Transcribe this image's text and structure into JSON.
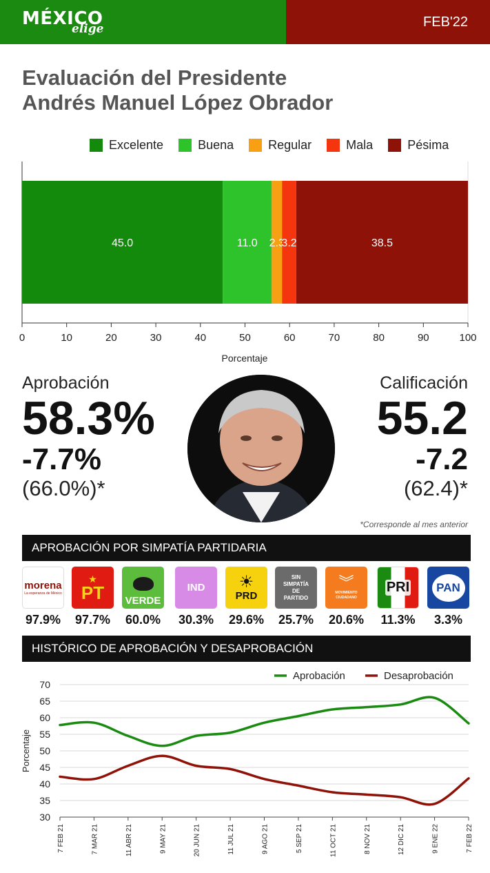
{
  "header": {
    "logo_main": "MÉXICO",
    "logo_sub": "elige",
    "date": "FEB'22",
    "colors": {
      "left": "#1a8a10",
      "right": "#8e1208"
    }
  },
  "title_line1": "Evaluación del Presidente",
  "title_line2": "Andrés Manuel López Obrador",
  "chart_data": [
    {
      "type": "bar",
      "orientation": "horizontal-stacked",
      "series": [
        {
          "name": "Excelente",
          "value": 45.0,
          "label": "45.0",
          "color": "#138a0c"
        },
        {
          "name": "Buena",
          "value": 11.0,
          "label": "11.0",
          "color": "#2ec32a"
        },
        {
          "name": "Regular",
          "value": 2.3,
          "label": "2.3",
          "color": "#f7a013"
        },
        {
          "name": "Mala",
          "value": 3.2,
          "label": "3.2",
          "color": "#f5350d"
        },
        {
          "name": "Pésima",
          "value": 38.5,
          "label": "38.5",
          "color": "#8e1208"
        }
      ],
      "xticks": [
        "0",
        "10",
        "20",
        "30",
        "40",
        "50",
        "60",
        "70",
        "80",
        "90",
        "100"
      ],
      "xlim": [
        0,
        100
      ],
      "xlabel": "Porcentaje",
      "legend": "top",
      "grid": false
    },
    {
      "type": "line",
      "title": "HISTÓRICO DE APROBACIÓN Y DESAPROBACIÓN",
      "ylabel": "Porcentaje",
      "ylim": [
        30,
        70
      ],
      "yticks": [
        "70",
        "65",
        "60",
        "55",
        "50",
        "45",
        "40",
        "35",
        "30"
      ],
      "categories": [
        "7 FEB 21",
        "7 MAR 21",
        "11 ABR 21",
        "9 MAY 21",
        "20 JUN 21",
        "11 JUL 21",
        "9 AGO 21",
        "5 SEP 21",
        "11 OCT 21",
        "8 NOV 21",
        "12 DIC 21",
        "9 ENE 22",
        "7 FEB 22"
      ],
      "series": [
        {
          "name": "Aprobación",
          "color": "#1a8a10",
          "values": [
            57.8,
            58.5,
            54.5,
            51.5,
            54.5,
            55.5,
            58.5,
            60.5,
            62.5,
            63.2,
            64.0,
            66.0,
            58.3
          ]
        },
        {
          "name": "Desaprobación",
          "color": "#8e1208",
          "values": [
            42.2,
            41.5,
            45.5,
            48.5,
            45.5,
            44.5,
            41.5,
            39.5,
            37.5,
            36.8,
            36.0,
            34.0,
            41.7
          ]
        }
      ],
      "legend": "top-right",
      "grid": true
    }
  ],
  "approval": {
    "label": "Aprobación",
    "value": "58.3%",
    "delta": "-7.7%",
    "previous": "(66.0%)*"
  },
  "rating": {
    "label": "Calificación",
    "value": "55.2",
    "delta": "-7.2",
    "previous": "(62.4)*"
  },
  "footnote": "*Corresponde al mes anterior",
  "party_section": {
    "title": "APROBACIÓN POR SIMPATÍA PARTIDARIA",
    "parties": [
      {
        "name": "morena",
        "sub": "La esperanza de México",
        "value": "97.9%"
      },
      {
        "name": "PT",
        "value": "97.7%"
      },
      {
        "name": "VERDE",
        "value": "60.0%"
      },
      {
        "name": "IND",
        "value": "30.3%"
      },
      {
        "name": "PRD",
        "value": "29.6%"
      },
      {
        "name": "SIN SIMPATÍA DE PARTIDO",
        "l1": "SIN",
        "l2": "SIMPATÍA",
        "l3": "DE",
        "l4": "PARTIDO",
        "value": "25.7%"
      },
      {
        "name": "MOVIMIENTO CIUDADANO",
        "value": "20.6%"
      },
      {
        "name": "PRI",
        "value": "11.3%"
      },
      {
        "name": "PAN",
        "value": "3.3%"
      }
    ]
  }
}
